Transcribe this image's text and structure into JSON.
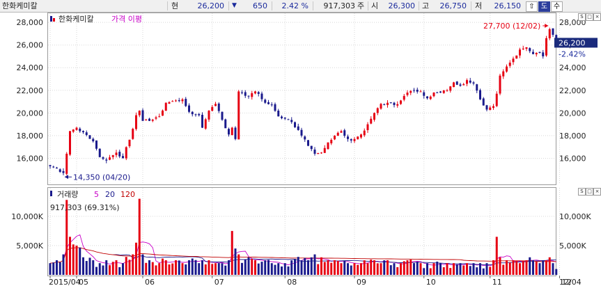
{
  "header": {
    "stock_name": "한화케미칼",
    "current_label": "현",
    "current_price": "26,200",
    "change_arrow": "▼",
    "change": "650",
    "change_pct": "2.42 %",
    "volume": "917,303",
    "volume_unit": "주",
    "open_label": "시",
    "open": "26,300",
    "high_label": "고",
    "high": "26,750",
    "low_label": "저",
    "low": "26,150",
    "btn_up": "⇧",
    "btn_do": "도",
    "btn_su": "수"
  },
  "price_panel": {
    "icon": "chart-bar-icon",
    "name": "한화케미칼",
    "moving_avg_label": "가격 이평",
    "high_note": "27,700 (12/02)",
    "low_note": "14,350 (04/20)",
    "last_price": "26,200",
    "last_change": "-2.42%",
    "corner_btns": [
      "S",
      "□",
      "×"
    ]
  },
  "volume_panel": {
    "label": "거래량",
    "ma_labels": [
      "5",
      "20",
      "120"
    ],
    "current": "917,303 (69.31%)",
    "corner_btns": [
      "S",
      "□",
      "×"
    ]
  },
  "colors": {
    "up": "#e60012",
    "down": "#1a1a8c",
    "ma5": "#c800c8",
    "ma20": "#1a1a8c",
    "ma120": "#c00000",
    "last_box": "#1a2a7c"
  },
  "chart_data": {
    "type": "candlestick",
    "price_axis": {
      "ylim": [
        14000,
        28500
      ],
      "ticks": [
        "16,000",
        "18,000",
        "20,000",
        "22,000",
        "24,000",
        "26,000",
        "28,000"
      ]
    },
    "volume_axis": {
      "ylim": [
        0,
        14500
      ],
      "unit": "K",
      "ticks": [
        "5,000K",
        "10,000K"
      ]
    },
    "x_labels": [
      {
        "label": "2015/04",
        "index": 0
      },
      {
        "label": "05",
        "index": 8
      },
      {
        "label": "06",
        "index": 28
      },
      {
        "label": "07",
        "index": 49
      },
      {
        "label": "08",
        "index": 71
      },
      {
        "label": "09",
        "index": 92
      },
      {
        "label": "10",
        "index": 113
      },
      {
        "label": "11",
        "index": 133
      },
      {
        "label": "12",
        "index": 154
      }
    ],
    "end_label": "12/04",
    "anchors": [
      [
        0,
        15300,
        2000
      ],
      [
        2,
        15100,
        2500
      ],
      [
        4,
        14700,
        3500
      ],
      [
        5,
        16400,
        12800
      ],
      [
        6,
        18400,
        6500
      ],
      [
        8,
        18700,
        5000
      ],
      [
        10,
        18300,
        3000
      ],
      [
        13,
        17500,
        2500
      ],
      [
        15,
        16100,
        2000
      ],
      [
        17,
        15800,
        2500
      ],
      [
        20,
        16500,
        2500
      ],
      [
        22,
        16000,
        2000
      ],
      [
        25,
        18600,
        3500
      ],
      [
        26,
        19800,
        5500
      ],
      [
        27,
        20200,
        13000
      ],
      [
        28,
        19300,
        3500
      ],
      [
        30,
        19300,
        2500
      ],
      [
        33,
        19700,
        2000
      ],
      [
        35,
        20900,
        2500
      ],
      [
        38,
        21100,
        2500
      ],
      [
        40,
        21200,
        2000
      ],
      [
        42,
        20100,
        2500
      ],
      [
        45,
        19800,
        2000
      ],
      [
        46,
        18700,
        2500
      ],
      [
        48,
        20200,
        2500
      ],
      [
        50,
        20800,
        2000
      ],
      [
        52,
        19400,
        2000
      ],
      [
        54,
        18100,
        2500
      ],
      [
        55,
        18700,
        7500
      ],
      [
        56,
        17700,
        4500
      ],
      [
        57,
        21900,
        3500
      ],
      [
        60,
        21500,
        3000
      ],
      [
        62,
        21900,
        2500
      ],
      [
        65,
        20900,
        2500
      ],
      [
        67,
        20700,
        2000
      ],
      [
        69,
        19700,
        2000
      ],
      [
        71,
        19500,
        2000
      ],
      [
        73,
        19200,
        2500
      ],
      [
        76,
        18000,
        2500
      ],
      [
        78,
        17100,
        2500
      ],
      [
        80,
        16400,
        3500
      ],
      [
        82,
        16500,
        3000
      ],
      [
        84,
        17400,
        2500
      ],
      [
        86,
        18000,
        2500
      ],
      [
        88,
        18400,
        2000
      ],
      [
        90,
        17700,
        2000
      ],
      [
        92,
        17700,
        2000
      ],
      [
        94,
        18100,
        2000
      ],
      [
        96,
        19000,
        2000
      ],
      [
        98,
        20000,
        2500
      ],
      [
        100,
        20800,
        2000
      ],
      [
        102,
        20900,
        2500
      ],
      [
        104,
        20700,
        2000
      ],
      [
        106,
        21100,
        2000
      ],
      [
        108,
        21800,
        2500
      ],
      [
        110,
        22000,
        2000
      ],
      [
        112,
        21900,
        2000
      ],
      [
        114,
        21300,
        2000
      ],
      [
        116,
        21800,
        2000
      ],
      [
        118,
        21800,
        2000
      ],
      [
        120,
        22000,
        2000
      ],
      [
        122,
        22700,
        2000
      ],
      [
        124,
        22400,
        2000
      ],
      [
        126,
        22900,
        2000
      ],
      [
        128,
        22600,
        2000
      ],
      [
        130,
        21200,
        2000
      ],
      [
        132,
        20300,
        2000
      ],
      [
        134,
        20600,
        2500
      ],
      [
        135,
        21700,
        6500
      ],
      [
        136,
        23300,
        3000
      ],
      [
        138,
        24100,
        2500
      ],
      [
        140,
        24800,
        2500
      ],
      [
        142,
        25600,
        2000
      ],
      [
        144,
        25800,
        2500
      ],
      [
        146,
        25200,
        2500
      ],
      [
        148,
        25300,
        2000
      ],
      [
        149,
        25000,
        2500
      ],
      [
        150,
        26600,
        2500
      ],
      [
        151,
        27400,
        3000
      ],
      [
        152,
        26900,
        2000
      ],
      [
        153,
        26200,
        1000
      ]
    ],
    "high_point": {
      "index": 151,
      "value": 27700,
      "label": "27,700 (12/02)"
    },
    "low_point": {
      "index": 4,
      "value": 14350,
      "label": "14,350 (04/20)"
    }
  }
}
